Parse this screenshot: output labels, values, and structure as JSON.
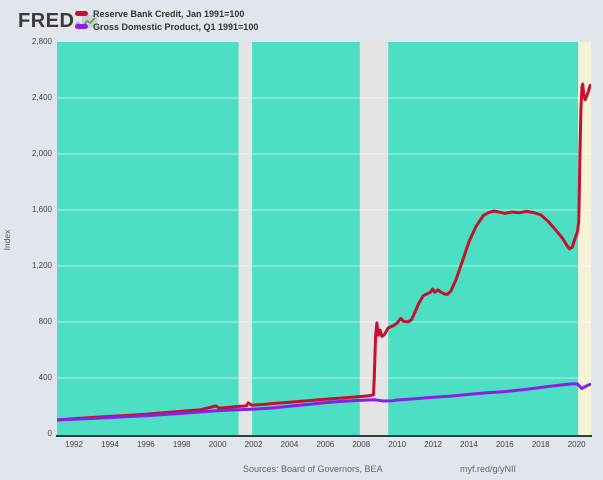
{
  "header": {
    "logo_text": "FRED",
    "registered_mark": "®"
  },
  "footer": {
    "sources": "Sources: Board of Governors, BEA",
    "permalink": "myf.red/g/yNII"
  },
  "chart_data": {
    "type": "line",
    "title": "",
    "subtitle": "",
    "xlabel": "",
    "ylabel": "Index",
    "x_unit": "year",
    "xlim": [
      1991.05,
      2020.8
    ],
    "ylim": [
      0,
      2800
    ],
    "y_ticks": [
      0,
      400,
      800,
      1200,
      1600,
      2000,
      2400,
      2800
    ],
    "x_ticks": [
      1992,
      1994,
      1996,
      1998,
      2000,
      2002,
      2004,
      2006,
      2008,
      2010,
      2012,
      2014,
      2016,
      2018,
      2020
    ],
    "grid": true,
    "legend_position": "top-left",
    "plot_bg_color": "#4ddfc3",
    "gridline_color": "rgba(255,255,255,0.55)",
    "axis_line_color": "#333a40",
    "recession_bands": [
      {
        "start": 2001.17,
        "end": 2001.92,
        "color": "#e4e4e4"
      },
      {
        "start": 2007.92,
        "end": 2009.5,
        "color": "#e4e4e4"
      },
      {
        "start": 2020.08,
        "end": 2020.8,
        "color": "#f6f2d8"
      }
    ],
    "series": [
      {
        "name": "Reserve Bank Credit, Jan 1991=100",
        "color": "#c4122e",
        "width": 3,
        "points": [
          [
            1991.05,
            100
          ],
          [
            1991.5,
            104
          ],
          [
            1992,
            110
          ],
          [
            1993,
            118
          ],
          [
            1994,
            126
          ],
          [
            1995,
            133
          ],
          [
            1996,
            141
          ],
          [
            1997,
            152
          ],
          [
            1998,
            163
          ],
          [
            1999,
            172
          ],
          [
            1999.9,
            200
          ],
          [
            2000.1,
            184
          ],
          [
            2000.5,
            189
          ],
          [
            2001,
            196
          ],
          [
            2001.6,
            201
          ],
          [
            2001.7,
            222
          ],
          [
            2001.9,
            206
          ],
          [
            2002.5,
            211
          ],
          [
            2003,
            217
          ],
          [
            2004,
            227
          ],
          [
            2005,
            238
          ],
          [
            2006,
            248
          ],
          [
            2007,
            258
          ],
          [
            2007.9,
            267
          ],
          [
            2008.4,
            272
          ],
          [
            2008.68,
            280
          ],
          [
            2008.73,
            410
          ],
          [
            2008.8,
            700
          ],
          [
            2008.87,
            793
          ],
          [
            2008.95,
            705
          ],
          [
            2009.05,
            742
          ],
          [
            2009.15,
            697
          ],
          [
            2009.3,
            712
          ],
          [
            2009.5,
            758
          ],
          [
            2009.8,
            775
          ],
          [
            2010,
            792
          ],
          [
            2010.2,
            826
          ],
          [
            2010.35,
            806
          ],
          [
            2010.6,
            801
          ],
          [
            2010.8,
            816
          ],
          [
            2011,
            872
          ],
          [
            2011.2,
            932
          ],
          [
            2011.45,
            988
          ],
          [
            2011.65,
            1000
          ],
          [
            2011.85,
            1012
          ],
          [
            2011.97,
            1036
          ],
          [
            2012.1,
            1012
          ],
          [
            2012.27,
            1030
          ],
          [
            2012.45,
            1012
          ],
          [
            2012.65,
            1000
          ],
          [
            2012.8,
            997
          ],
          [
            2013,
            1022
          ],
          [
            2013.3,
            1110
          ],
          [
            2013.65,
            1240
          ],
          [
            2014,
            1372
          ],
          [
            2014.4,
            1484
          ],
          [
            2014.8,
            1560
          ],
          [
            2015.1,
            1582
          ],
          [
            2015.4,
            1592
          ],
          [
            2015.7,
            1585
          ],
          [
            2016,
            1576
          ],
          [
            2016.4,
            1586
          ],
          [
            2016.8,
            1580
          ],
          [
            2017.2,
            1590
          ],
          [
            2017.6,
            1582
          ],
          [
            2018,
            1566
          ],
          [
            2018.4,
            1521
          ],
          [
            2018.8,
            1462
          ],
          [
            2019.2,
            1400
          ],
          [
            2019.45,
            1348
          ],
          [
            2019.6,
            1322
          ],
          [
            2019.75,
            1335
          ],
          [
            2019.9,
            1392
          ],
          [
            2020.05,
            1445
          ],
          [
            2020.12,
            1520
          ],
          [
            2020.18,
            1980
          ],
          [
            2020.24,
            2320
          ],
          [
            2020.3,
            2480
          ],
          [
            2020.34,
            2500
          ],
          [
            2020.4,
            2425
          ],
          [
            2020.47,
            2388
          ],
          [
            2020.55,
            2410
          ],
          [
            2020.65,
            2445
          ],
          [
            2020.75,
            2490
          ]
        ]
      },
      {
        "name": "Gross Domestic Product, Q1 1991=100",
        "color": "#8a1ee8",
        "width": 3,
        "points": [
          [
            1991.05,
            100
          ],
          [
            1992,
            105
          ],
          [
            1993,
            111
          ],
          [
            1994,
            118
          ],
          [
            1995,
            124
          ],
          [
            1996,
            131
          ],
          [
            1997,
            139
          ],
          [
            1998,
            147
          ],
          [
            1999,
            157
          ],
          [
            2000,
            167
          ],
          [
            2001,
            172
          ],
          [
            2002,
            178
          ],
          [
            2003,
            186
          ],
          [
            2004,
            198
          ],
          [
            2005,
            211
          ],
          [
            2006,
            224
          ],
          [
            2007,
            234
          ],
          [
            2008,
            241
          ],
          [
            2008.75,
            244
          ],
          [
            2009.25,
            236
          ],
          [
            2009.75,
            238
          ],
          [
            2010,
            243
          ],
          [
            2011,
            252
          ],
          [
            2012,
            262
          ],
          [
            2013,
            271
          ],
          [
            2014,
            283
          ],
          [
            2015,
            294
          ],
          [
            2016,
            303
          ],
          [
            2017,
            316
          ],
          [
            2018,
            332
          ],
          [
            2019,
            348
          ],
          [
            2019.75,
            359
          ],
          [
            2020.05,
            357
          ],
          [
            2020.28,
            325
          ],
          [
            2020.5,
            340
          ],
          [
            2020.65,
            350
          ],
          [
            2020.75,
            354
          ]
        ]
      }
    ]
  }
}
